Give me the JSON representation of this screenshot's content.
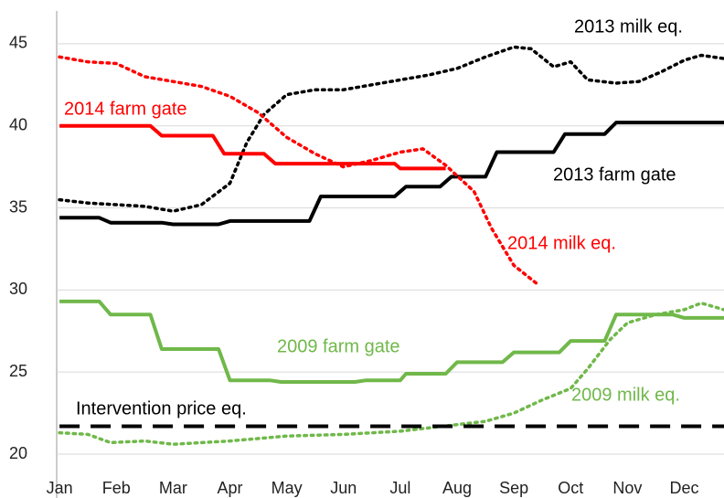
{
  "chart_data": {
    "type": "line",
    "xlim": [
      -0.05,
      11.7
    ],
    "ylim": [
      20,
      47
    ],
    "yticks": [
      20,
      25,
      30,
      35,
      40,
      45
    ],
    "xticks": [
      {
        "value": 0,
        "label": "Jan"
      },
      {
        "value": 1,
        "label": "Feb"
      },
      {
        "value": 2,
        "label": "Mar"
      },
      {
        "value": 3,
        "label": "Apr"
      },
      {
        "value": 4,
        "label": "May"
      },
      {
        "value": 5,
        "label": "Jun"
      },
      {
        "value": 6,
        "label": "Jul"
      },
      {
        "value": 7,
        "label": "Aug"
      },
      {
        "value": 8,
        "label": "Sep"
      },
      {
        "value": 9,
        "label": "Oct"
      },
      {
        "value": 10,
        "label": "Nov"
      },
      {
        "value": 11,
        "label": "Dec"
      }
    ],
    "grid": true,
    "series": [
      {
        "name": "2013 milk eq.",
        "color": "#000000",
        "style": "dotted",
        "x": [
          0,
          0.5,
          1,
          1.5,
          2,
          2.5,
          3,
          3.3,
          3.6,
          4,
          4.5,
          5,
          5.5,
          6,
          6.5,
          7,
          7.5,
          8,
          8.3,
          8.7,
          9,
          9.3,
          9.8,
          10.2,
          10.6,
          11,
          11.3,
          11.7
        ],
        "values": [
          35.5,
          35.3,
          35.2,
          35.1,
          34.8,
          35.2,
          36.5,
          39,
          40.7,
          41.9,
          42.2,
          42.2,
          42.5,
          42.8,
          43.1,
          43.5,
          44.2,
          44.8,
          44.7,
          43.6,
          43.9,
          42.8,
          42.6,
          42.7,
          43.3,
          44,
          44.3,
          44.1
        ]
      },
      {
        "name": "2014 farm gate",
        "color": "#ff0000",
        "style": "solid",
        "x": [
          0,
          1.6,
          1.8,
          2.7,
          2.9,
          3.6,
          3.8,
          5.9,
          6.0,
          6.8
        ],
        "values": [
          40.0,
          40.0,
          39.4,
          39.4,
          38.3,
          38.3,
          37.7,
          37.7,
          37.4,
          37.4
        ]
      },
      {
        "name": "2013 farm gate",
        "color": "#000000",
        "style": "solid",
        "x": [
          0,
          0.7,
          0.9,
          1.8,
          2.0,
          2.8,
          3.0,
          4.4,
          4.6,
          5.9,
          6.1,
          6.7,
          6.9,
          7.5,
          7.7,
          8.7,
          8.9,
          9.6,
          9.8,
          11.7
        ],
        "values": [
          34.4,
          34.4,
          34.1,
          34.1,
          34.0,
          34.0,
          34.2,
          34.2,
          35.7,
          35.7,
          36.3,
          36.3,
          36.9,
          36.9,
          38.4,
          38.4,
          39.5,
          39.5,
          40.2,
          40.2
        ]
      },
      {
        "name": "2014 milk eq.",
        "color": "#ff0000",
        "style": "dotted",
        "x": [
          0,
          0.5,
          1,
          1.5,
          2,
          2.5,
          3,
          3.5,
          4,
          4.5,
          5,
          5.5,
          6,
          6.4,
          6.8,
          7.3,
          7.6,
          8,
          8.4
        ],
        "values": [
          44.2,
          43.9,
          43.8,
          43.0,
          42.7,
          42.4,
          41.8,
          40.8,
          39.3,
          38.3,
          37.5,
          37.9,
          38.4,
          38.6,
          37.6,
          36.0,
          33.8,
          31.5,
          30.4
        ]
      },
      {
        "name": "2009 farm gate",
        "color": "#70b84a",
        "style": "solid",
        "x": [
          0,
          0.7,
          0.9,
          1.6,
          1.8,
          2.8,
          3.0,
          3.7,
          3.9,
          5.2,
          5.4,
          6.0,
          6.1,
          6.8,
          7.0,
          7.8,
          8.0,
          8.8,
          9.0,
          9.6,
          9.8,
          10.8,
          11.0,
          11.7
        ],
        "values": [
          29.3,
          29.3,
          28.5,
          28.5,
          26.4,
          26.4,
          24.5,
          24.5,
          24.4,
          24.4,
          24.5,
          24.5,
          24.9,
          24.9,
          25.6,
          25.6,
          26.2,
          26.2,
          26.9,
          26.9,
          28.5,
          28.5,
          28.3,
          28.3
        ]
      },
      {
        "name": "2009 milk eq.",
        "color": "#70b84a",
        "style": "dotted",
        "x": [
          0,
          0.5,
          0.9,
          1.5,
          2,
          3,
          4,
          5,
          6,
          7,
          7.5,
          8,
          8.5,
          9,
          9.3,
          9.7,
          10,
          10.5,
          11,
          11.3,
          11.7
        ],
        "values": [
          21.3,
          21.2,
          20.7,
          20.8,
          20.6,
          20.8,
          21.1,
          21.2,
          21.4,
          21.8,
          22.0,
          22.5,
          23.3,
          24.0,
          25.2,
          27.0,
          28.0,
          28.5,
          28.8,
          29.2,
          28.8
        ]
      },
      {
        "name": "Intervention price eq.",
        "color": "#000000",
        "style": "dashed",
        "x": [
          0,
          11.7
        ],
        "values": [
          21.7,
          21.7
        ]
      }
    ]
  }
}
